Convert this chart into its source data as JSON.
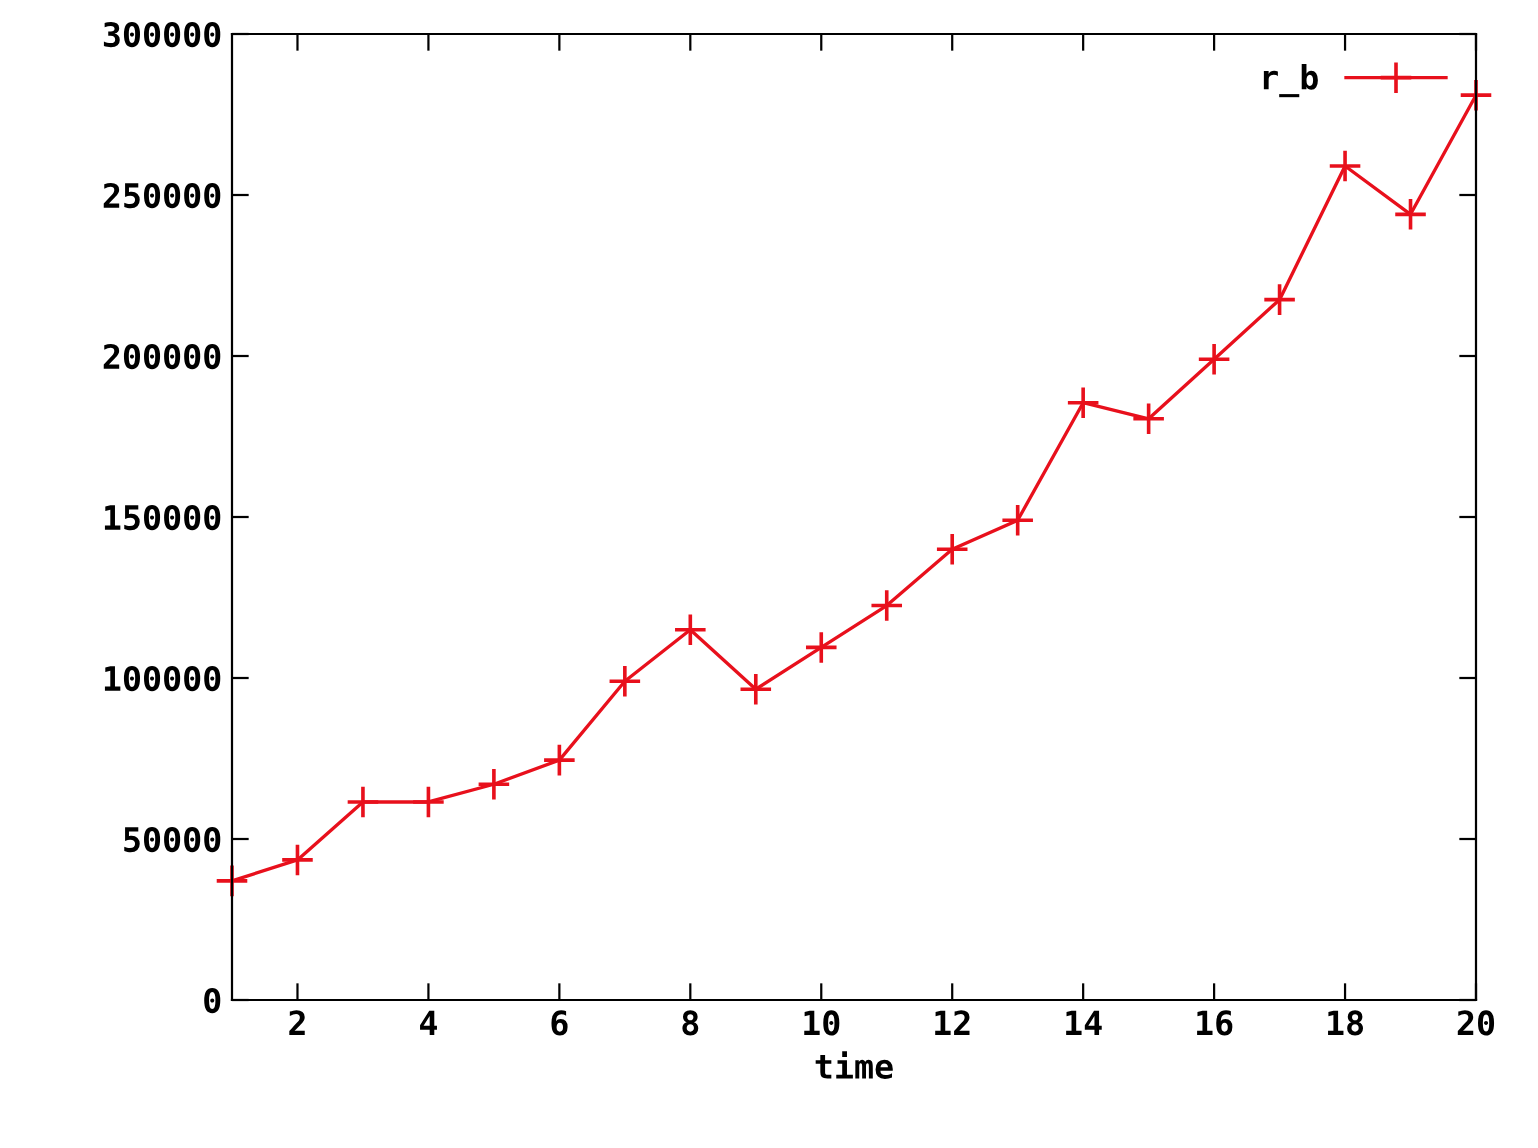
{
  "chart_data": {
    "type": "line",
    "xlabel": "time",
    "x": [
      1,
      2,
      3,
      4,
      5,
      6,
      7,
      8,
      9,
      10,
      11,
      12,
      13,
      14,
      15,
      16,
      17,
      18,
      19,
      20
    ],
    "series": [
      {
        "name": "r_b",
        "color": "#e8101c",
        "values": [
          37000,
          43500,
          61500,
          61500,
          67000,
          74500,
          99000,
          115000,
          96500,
          109500,
          122500,
          140000,
          149000,
          185500,
          180500,
          199000,
          217500,
          259000,
          244000,
          281000
        ]
      }
    ],
    "xlim": [
      1,
      20
    ],
    "xticks": [
      2,
      4,
      6,
      8,
      10,
      12,
      14,
      16,
      18,
      20
    ],
    "ylim": [
      0,
      300000
    ],
    "yticks": [
      0,
      50000,
      100000,
      150000,
      200000,
      250000,
      300000
    ],
    "grid": false,
    "legend": "top right",
    "marker": "cross",
    "line_style": "solid"
  }
}
